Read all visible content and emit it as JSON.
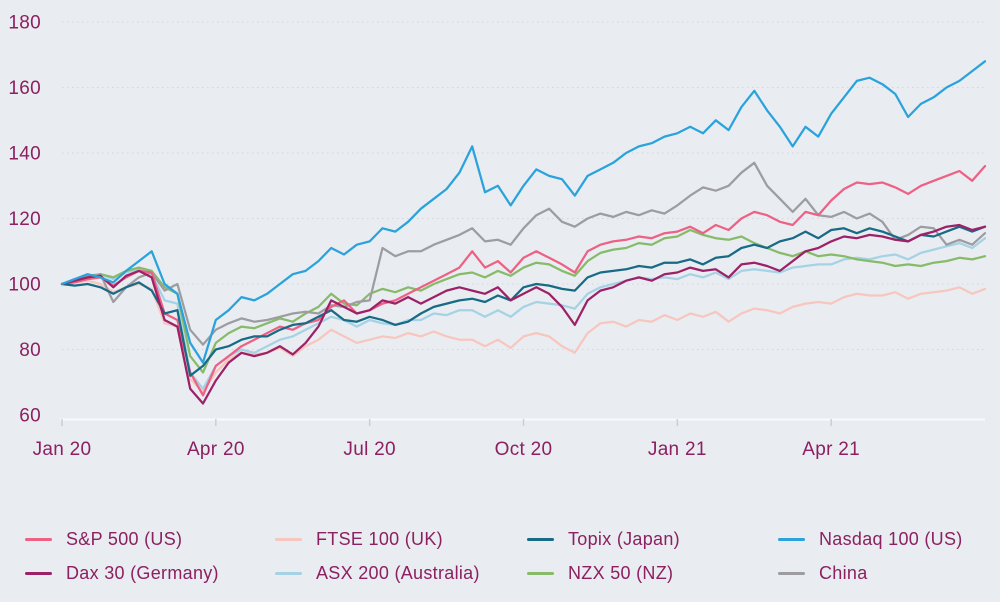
{
  "style": {
    "background": "#e9edf2",
    "text_color": "#8c2060",
    "grid_color": "#d2d7dd",
    "axis_line_color": "#f8fafc",
    "tick_color": "#c9cfd8"
  },
  "chart_data": {
    "type": "line",
    "title": "",
    "subtitle": "",
    "xlabel": "",
    "ylabel": "",
    "base_value": 100,
    "x_range_months": [
      0,
      18
    ],
    "x_tick_labels": [
      "Jan 20",
      "Apr 20",
      "Jul 20",
      "Oct 20",
      "Jan 21",
      "Apr 21"
    ],
    "x_tick_months": [
      0,
      3,
      6,
      9,
      12,
      15
    ],
    "y_ticks": [
      60,
      80,
      100,
      120,
      140,
      160,
      180
    ],
    "ylim": [
      60,
      185
    ],
    "grid": "horizontal-dotted",
    "legend_position": "bottom",
    "points_per_month": 4,
    "series": [
      {
        "name": "S&P 500 (US)",
        "color": "#ed6184",
        "values": [
          100,
          100.5,
          101.5,
          102,
          99.5,
          102,
          104,
          103.5,
          91,
          89,
          73,
          66,
          75,
          78,
          81,
          83,
          85,
          87,
          86,
          88,
          89,
          93,
          95,
          91,
          92,
          94,
          95,
          97,
          99,
          101,
          103,
          105,
          110,
          105,
          107,
          103.5,
          108,
          110,
          108,
          106,
          103.5,
          110,
          112,
          113,
          113.5,
          114.5,
          114,
          115.5,
          116,
          117.5,
          115.5,
          118,
          116.5,
          120,
          122,
          121,
          119,
          118,
          122,
          121,
          125.5,
          129,
          131,
          130.5,
          131,
          129.5,
          127.5,
          130,
          131.5,
          133,
          134.5,
          131.5,
          136
        ]
      },
      {
        "name": "FTSE 100 (UK)",
        "color": "#f7c6be",
        "values": [
          100,
          100.5,
          101,
          100,
          97.5,
          99,
          100,
          98.5,
          88,
          87,
          71,
          67,
          73,
          77,
          79,
          78.5,
          79,
          80.5,
          78,
          81,
          83,
          86,
          84,
          82,
          83,
          84,
          83.5,
          85,
          84,
          85.5,
          84,
          83,
          83,
          81,
          83,
          80.5,
          84,
          85,
          84,
          81,
          79,
          85,
          88,
          88.5,
          87,
          89,
          88.5,
          90.5,
          89,
          91,
          90,
          91.5,
          88.5,
          91,
          92.5,
          92,
          91,
          93,
          94,
          94.5,
          94,
          96,
          97,
          96.5,
          96.5,
          97.5,
          95.5,
          97,
          97.5,
          98,
          99,
          97,
          98.5
        ]
      },
      {
        "name": "Topix (Japan)",
        "color": "#186a85",
        "values": [
          100,
          99.5,
          100,
          99,
          97,
          99,
          100.5,
          98,
          91,
          92,
          72,
          75,
          80,
          81,
          83,
          84,
          84,
          86,
          87.5,
          88,
          90,
          92,
          89,
          88.5,
          90,
          89,
          87.5,
          88.5,
          91,
          93,
          94,
          95,
          95.5,
          94.5,
          96.5,
          95,
          99,
          100,
          99.5,
          98.5,
          98,
          102,
          103.5,
          104,
          104.5,
          105.5,
          105,
          106.5,
          106.5,
          107.5,
          106,
          108,
          108.5,
          111,
          112,
          111,
          113,
          114,
          116,
          114,
          116.5,
          117,
          115.5,
          117,
          116,
          114.5,
          113,
          115,
          114.5,
          116,
          117.5,
          116,
          117.5
        ]
      },
      {
        "name": "Nasdaq 100 (US)",
        "color": "#2aa2dc",
        "values": [
          100,
          101.5,
          103,
          102,
          100.5,
          104,
          107,
          110,
          100,
          97,
          82,
          76,
          89,
          92,
          96,
          95,
          97,
          100,
          103,
          104,
          107,
          111,
          109,
          112,
          113,
          117,
          116,
          119,
          123,
          126,
          129,
          134,
          142,
          128,
          130,
          124,
          130,
          135,
          133,
          132,
          127,
          133,
          135,
          137,
          140,
          142,
          143,
          145,
          146,
          148,
          146,
          150,
          147,
          154,
          159,
          153,
          148,
          142,
          148,
          145,
          152,
          157,
          162,
          163,
          161,
          158,
          151,
          155,
          157,
          160,
          162,
          165,
          168
        ]
      },
      {
        "name": "Dax 30 (Germany)",
        "color": "#9c2167",
        "values": [
          100,
          101,
          102,
          102.5,
          99,
          102.5,
          104,
          102,
          89,
          87,
          68,
          63.5,
          70.5,
          76,
          79,
          78,
          79,
          81,
          78.5,
          82,
          87,
          95,
          93,
          91,
          92,
          95,
          94,
          96,
          94,
          96,
          98,
          99,
          98,
          97,
          99,
          95,
          97,
          99,
          97,
          93,
          87.5,
          95,
          98,
          99,
          101,
          102,
          101,
          103,
          103.5,
          105,
          104,
          104.5,
          102,
          106,
          106.5,
          105.5,
          104,
          107,
          110,
          111,
          113,
          114.5,
          114,
          115,
          114.5,
          113.5,
          113,
          115,
          116,
          117.5,
          118,
          116.5,
          117.5
        ]
      },
      {
        "name": "ASX 200 (Australia)",
        "color": "#a5d2e4",
        "values": [
          100,
          101,
          102,
          103,
          101.5,
          103.5,
          104.5,
          103,
          95,
          94,
          73,
          68,
          75,
          78,
          80,
          79,
          81,
          83,
          84,
          86,
          88,
          90,
          89,
          87,
          89,
          88,
          87.5,
          89,
          89,
          91,
          90.5,
          92,
          92,
          90,
          92,
          90,
          93,
          94.5,
          94,
          93.5,
          92.5,
          97,
          99,
          100,
          101,
          102,
          101.5,
          102,
          101.5,
          103,
          102,
          103.5,
          101.5,
          104,
          104.5,
          104,
          103.5,
          105,
          105.5,
          106,
          106,
          107.5,
          108,
          107.5,
          108.5,
          109,
          107.5,
          109.5,
          110.5,
          111.5,
          112.5,
          111,
          114
        ]
      },
      {
        "name": "NZX 50 (NZ)",
        "color": "#87bb69",
        "values": [
          100,
          101,
          102.5,
          103,
          102,
          104,
          105,
          104,
          99,
          97,
          78,
          73,
          82,
          85,
          87,
          86.5,
          88,
          89.5,
          88.5,
          91,
          93,
          97,
          94,
          93.5,
          97,
          98.5,
          97.5,
          99,
          98,
          100,
          101.5,
          103,
          103.5,
          102,
          104,
          102.5,
          105,
          106.5,
          106,
          104,
          102.5,
          107,
          109.5,
          110.5,
          111,
          112.5,
          112,
          114,
          114.5,
          116.5,
          115,
          114,
          113.5,
          114.5,
          112.5,
          111,
          109.5,
          108.5,
          110,
          108.5,
          109,
          108.5,
          107.5,
          107,
          106.5,
          105.5,
          106,
          105.5,
          106.5,
          107,
          108,
          107.5,
          108.5
        ]
      },
      {
        "name": "China",
        "color": "#9d9da1",
        "values": [
          100,
          101.5,
          102,
          103,
          94.5,
          99,
          102,
          103.5,
          98,
          100,
          86,
          81.5,
          86,
          88,
          89.5,
          88.5,
          89,
          90,
          91,
          91.5,
          91,
          93.5,
          93,
          94.5,
          95,
          111,
          108.5,
          110,
          110,
          112,
          113.5,
          115,
          117,
          113,
          113.5,
          112,
          117,
          121,
          123,
          119,
          117.5,
          120,
          121.5,
          120.5,
          122,
          121,
          122.5,
          121.5,
          124,
          127,
          129.5,
          128.5,
          130,
          134,
          137,
          130,
          126,
          122,
          126,
          121,
          120.5,
          122,
          120,
          121.5,
          119,
          113.5,
          115,
          117.5,
          117,
          112,
          113.5,
          112,
          115.5
        ]
      }
    ]
  }
}
